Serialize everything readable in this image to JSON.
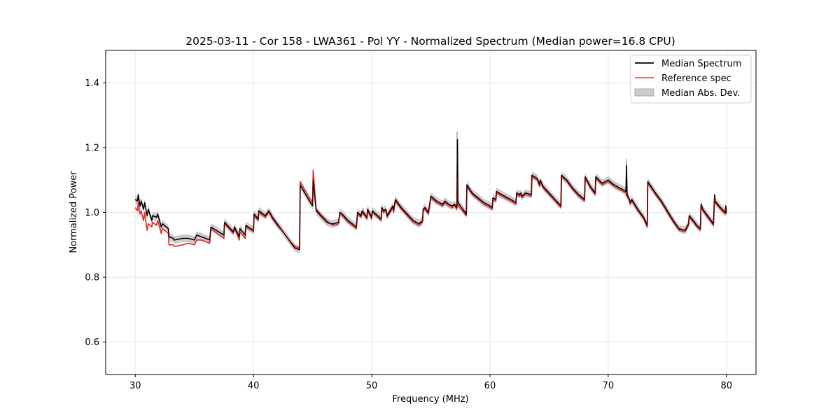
{
  "chart_data": {
    "type": "line",
    "title": "2025-03-11 - Cor 158 - LWA361 - Pol YY - Normalized Spectrum (Median power=16.8 CPU)",
    "xlabel": "Frequency (MHz)",
    "ylabel": "Normalized Power",
    "xlim": [
      27.5,
      82.5
    ],
    "ylim": [
      0.5,
      1.5
    ],
    "xticks": [
      30,
      40,
      50,
      60,
      70,
      80
    ],
    "yticks": [
      0.6,
      0.8,
      1.0,
      1.2,
      1.4
    ],
    "xtick_labels": [
      "30",
      "40",
      "50",
      "60",
      "70",
      "80"
    ],
    "ytick_labels": [
      "0.6",
      "0.8",
      "1.0",
      "1.2",
      "1.4"
    ],
    "grid": true,
    "legend_position": "top-right",
    "colors": {
      "median": "#000000",
      "reference": "#ee5555",
      "mad": "#bbbbbb"
    },
    "series": [
      {
        "name": "Median Spectrum",
        "color": "#000000",
        "x": [
          30.0,
          30.2,
          30.25,
          30.4,
          30.5,
          30.7,
          30.8,
          31.0,
          31.1,
          31.4,
          31.45,
          31.8,
          31.9,
          32.2,
          32.3,
          32.8,
          32.85,
          33.2,
          33.3,
          34.0,
          34.5,
          35.0,
          35.2,
          35.6,
          36.3,
          36.4,
          37.5,
          37.55,
          38.3,
          38.4,
          38.8,
          38.85,
          39.3,
          39.35,
          40.0,
          40.05,
          40.4,
          40.45,
          41.0,
          41.3,
          41.6,
          42.0,
          42.5,
          43.0,
          43.5,
          43.9,
          43.95,
          44.5,
          45.0,
          45.05,
          45.3,
          45.8,
          46.2,
          46.5,
          46.8,
          47.2,
          47.3,
          47.5,
          48.0,
          48.7,
          48.8,
          49.1,
          49.2,
          49.6,
          49.65,
          50.0,
          50.05,
          50.8,
          50.85,
          51.0,
          51.2,
          51.3,
          51.8,
          51.85,
          52.0,
          52.5,
          53.0,
          53.5,
          54.0,
          54.3,
          54.35,
          54.5,
          54.8,
          55.0,
          55.5,
          56.0,
          56.2,
          56.5,
          56.8,
          57.0,
          57.2,
          57.25,
          57.3,
          58.0,
          58.05,
          58.5,
          59.0,
          59.5,
          60.0,
          60.2,
          60.25,
          60.5,
          60.55,
          61.0,
          61.5,
          62.0,
          62.2,
          62.25,
          62.5,
          62.6,
          62.7,
          63.0,
          63.5,
          63.55,
          64.0,
          64.2,
          64.25,
          64.5,
          65.0,
          65.5,
          66.0,
          66.05,
          66.5,
          67.0,
          67.5,
          68.0,
          68.05,
          68.5,
          68.9,
          68.95,
          69.5,
          70.0,
          70.5,
          71.0,
          71.5,
          71.55,
          71.6,
          71.8,
          71.85,
          72.0,
          72.5,
          73.0,
          73.3,
          73.35,
          74.0,
          74.5,
          75.0,
          75.5,
          76.0,
          76.5,
          76.8,
          76.85,
          77.2,
          77.5,
          77.8,
          77.85,
          78.0,
          78.5,
          78.9,
          79.0,
          79.05,
          79.5,
          79.9,
          79.95,
          80.0
        ],
        "values": [
          1.04,
          1.035,
          1.055,
          1.02,
          1.035,
          1.01,
          1.03,
          0.99,
          1.01,
          0.975,
          0.99,
          0.985,
          0.995,
          0.955,
          0.965,
          0.95,
          0.925,
          0.92,
          0.915,
          0.92,
          0.92,
          0.915,
          0.93,
          0.925,
          0.915,
          0.955,
          0.93,
          0.97,
          0.94,
          0.955,
          0.925,
          0.95,
          0.93,
          0.96,
          0.945,
          0.995,
          0.98,
          1.005,
          0.99,
          1.005,
          0.985,
          0.965,
          0.94,
          0.915,
          0.89,
          0.885,
          1.085,
          1.05,
          1.02,
          1.1,
          1.005,
          0.985,
          0.97,
          0.965,
          0.965,
          0.97,
          1.0,
          0.995,
          0.975,
          0.955,
          1.0,
          0.99,
          1.005,
          0.985,
          1.01,
          0.985,
          1.005,
          0.98,
          1.015,
          1.005,
          1.01,
          0.99,
          1.02,
          1.005,
          1.04,
          1.015,
          0.995,
          0.975,
          0.965,
          0.975,
          1.01,
          1.015,
          1.0,
          1.05,
          1.035,
          1.025,
          1.035,
          1.025,
          1.02,
          1.025,
          1.015,
          1.225,
          1.03,
          0.995,
          1.085,
          1.06,
          1.045,
          1.03,
          1.02,
          1.015,
          1.045,
          1.04,
          1.065,
          1.055,
          1.045,
          1.035,
          1.03,
          1.06,
          1.055,
          1.06,
          1.05,
          1.06,
          1.055,
          1.115,
          1.105,
          1.085,
          1.1,
          1.08,
          1.06,
          1.04,
          1.02,
          1.115,
          1.1,
          1.075,
          1.055,
          1.04,
          1.11,
          1.08,
          1.06,
          1.11,
          1.09,
          1.1,
          1.085,
          1.075,
          1.065,
          1.145,
          1.055,
          1.04,
          1.03,
          1.04,
          1.01,
          0.985,
          0.96,
          1.095,
          1.06,
          1.035,
          1.005,
          0.975,
          0.95,
          0.945,
          0.965,
          0.99,
          0.975,
          0.96,
          0.95,
          1.025,
          1.01,
          0.985,
          0.965,
          1.055,
          1.035,
          1.015,
          1.0,
          1.02,
          1.0
        ]
      },
      {
        "name": "Reference spec",
        "color": "#ee5555",
        "x": [
          30.0,
          30.2,
          30.25,
          30.4,
          30.5,
          30.7,
          30.8,
          31.0,
          31.1,
          31.4,
          31.45,
          31.8,
          31.9,
          32.2,
          32.3,
          32.8,
          32.85,
          33.2,
          33.3,
          34.0,
          34.5,
          35.0,
          35.2,
          35.6,
          36.3,
          36.4,
          37.5,
          37.55,
          38.3,
          38.4,
          38.8,
          38.85,
          39.3,
          39.35,
          40.0,
          40.05,
          40.4,
          40.45,
          41.0,
          41.3,
          41.6,
          42.0,
          42.5,
          43.0,
          43.5,
          43.9,
          43.95,
          44.5,
          45.0,
          45.05,
          45.3,
          45.8,
          46.2,
          46.5,
          46.8,
          47.2,
          47.3,
          47.5,
          48.0,
          48.7,
          48.8,
          49.1,
          49.2,
          49.6,
          49.65,
          50.0,
          50.05,
          50.8,
          50.85,
          51.0,
          51.2,
          51.3,
          51.8,
          51.85,
          52.0,
          52.5,
          53.0,
          53.5,
          54.0,
          54.3,
          54.35,
          54.5,
          54.8,
          55.0,
          55.5,
          56.0,
          56.2,
          56.5,
          56.8,
          57.0,
          57.2,
          57.25,
          57.3,
          58.0,
          58.05,
          58.5,
          59.0,
          59.5,
          60.0,
          60.2,
          60.25,
          60.5,
          60.55,
          61.0,
          61.5,
          62.0,
          62.2,
          62.25,
          62.5,
          62.6,
          62.7,
          63.0,
          63.5,
          63.55,
          64.0,
          64.2,
          64.25,
          64.5,
          65.0,
          65.5,
          66.0,
          66.05,
          66.5,
          67.0,
          67.5,
          68.0,
          68.05,
          68.5,
          68.9,
          68.95,
          69.5,
          70.0,
          70.5,
          71.0,
          71.5,
          71.55,
          71.6,
          71.8,
          71.85,
          72.0,
          72.5,
          73.0,
          73.3,
          73.35,
          74.0,
          74.5,
          75.0,
          75.5,
          76.0,
          76.5,
          76.8,
          76.85,
          77.2,
          77.5,
          77.8,
          77.85,
          78.0,
          78.5,
          78.9,
          79.0,
          79.05,
          79.5,
          79.9,
          79.95,
          80.0
        ],
        "values": [
          1.015,
          1.005,
          1.03,
          0.995,
          1.005,
          0.975,
          1.0,
          0.945,
          0.965,
          0.955,
          0.97,
          0.96,
          0.975,
          0.935,
          0.95,
          0.935,
          0.9,
          0.9,
          0.895,
          0.9,
          0.905,
          0.9,
          0.915,
          0.915,
          0.905,
          0.95,
          0.92,
          0.965,
          0.935,
          0.95,
          0.915,
          0.94,
          0.92,
          0.955,
          0.94,
          0.99,
          0.975,
          1.0,
          0.985,
          1.0,
          0.98,
          0.96,
          0.94,
          0.915,
          0.895,
          0.89,
          1.095,
          1.06,
          1.03,
          1.13,
          1.01,
          0.99,
          0.975,
          0.965,
          0.96,
          0.965,
          0.995,
          0.99,
          0.97,
          0.95,
          0.995,
          0.985,
          1.0,
          0.98,
          1.005,
          0.98,
          1.0,
          0.975,
          1.01,
          1.0,
          1.005,
          0.985,
          1.015,
          1.0,
          1.035,
          1.01,
          0.99,
          0.97,
          0.96,
          0.97,
          1.005,
          1.01,
          0.995,
          1.045,
          1.03,
          1.02,
          1.03,
          1.02,
          1.015,
          1.02,
          1.01,
          1.105,
          1.02,
          0.99,
          1.08,
          1.055,
          1.04,
          1.025,
          1.015,
          1.01,
          1.04,
          1.035,
          1.06,
          1.05,
          1.04,
          1.03,
          1.025,
          1.055,
          1.05,
          1.055,
          1.045,
          1.055,
          1.05,
          1.11,
          1.1,
          1.08,
          1.095,
          1.075,
          1.055,
          1.035,
          1.015,
          1.11,
          1.095,
          1.07,
          1.05,
          1.035,
          1.105,
          1.075,
          1.055,
          1.105,
          1.085,
          1.095,
          1.08,
          1.07,
          1.06,
          1.05,
          1.05,
          1.035,
          1.025,
          1.035,
          1.005,
          0.98,
          0.955,
          1.09,
          1.055,
          1.03,
          1.0,
          0.97,
          0.945,
          0.94,
          0.96,
          0.985,
          0.97,
          0.955,
          0.945,
          1.02,
          1.005,
          0.98,
          0.96,
          1.05,
          1.03,
          1.01,
          0.995,
          1.015,
          0.995
        ]
      }
    ],
    "mad_band": {
      "name": "Median Abs. Dev.",
      "color": "#bbbbbb",
      "spikes": [
        {
          "x": 57.22,
          "high": 1.25,
          "low": 1.18
        },
        {
          "x": 71.55,
          "high": 1.165,
          "low": 1.125
        }
      ]
    }
  }
}
